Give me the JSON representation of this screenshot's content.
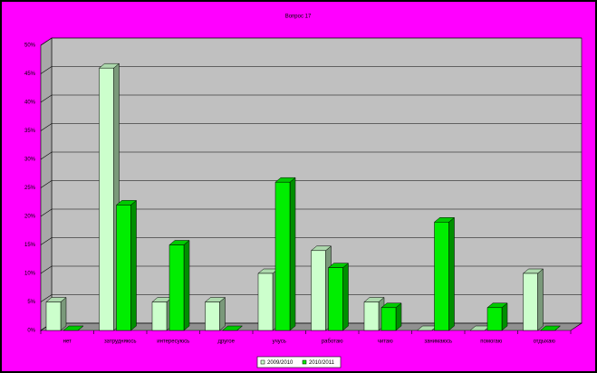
{
  "chart_data": {
    "type": "bar3d",
    "title": "Вопрос 17",
    "categories": [
      "нет",
      "затрудняюсь",
      "интересуюсь",
      "другое",
      "учусь",
      "работаю",
      "читаю",
      "занимаюсь",
      "помогаю",
      "отдыхаю"
    ],
    "series": [
      {
        "name": "2009/2010",
        "color": "#ccffcc",
        "values": [
          5,
          46,
          5,
          5,
          10,
          14,
          5,
          0,
          0,
          10
        ]
      },
      {
        "name": "2010/2011",
        "color": "#00ee00",
        "values": [
          0,
          22,
          15,
          0,
          26,
          11,
          4,
          19,
          4,
          0
        ]
      }
    ],
    "ylim": [
      0,
      50
    ],
    "yticks": [
      {
        "value": 0,
        "label": "0%"
      },
      {
        "value": 5,
        "label": "5%"
      },
      {
        "value": 10,
        "label": "10%"
      },
      {
        "value": 15,
        "label": "15%"
      },
      {
        "value": 20,
        "label": "20%"
      },
      {
        "value": 25,
        "label": "25%"
      },
      {
        "value": 30,
        "label": "30%"
      },
      {
        "value": 35,
        "label": "35%"
      },
      {
        "value": 40,
        "label": "40%"
      },
      {
        "value": 45,
        "label": "45%"
      },
      {
        "value": 50,
        "label": "50%"
      }
    ],
    "grid": true
  }
}
